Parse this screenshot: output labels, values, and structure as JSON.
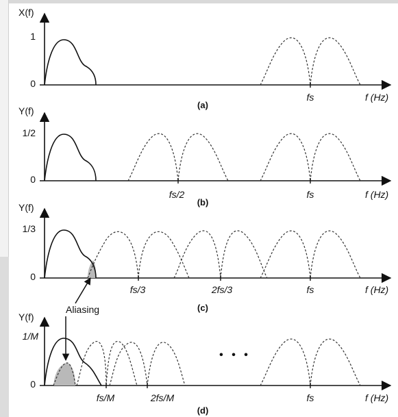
{
  "panels": [
    {
      "caption": "(a)",
      "y_axis_label": "X(f)",
      "y_tick_top": "1",
      "y_tick_zero": "0",
      "x_ticks": [
        "fs"
      ],
      "x_axis_label": "f (Hz)"
    },
    {
      "caption": "(b)",
      "y_axis_label": "Y(f)",
      "y_tick_top": "1/2",
      "y_tick_zero": "0",
      "x_ticks": [
        "fs/2",
        "fs"
      ],
      "x_axis_label": "f (Hz)"
    },
    {
      "caption": "(c)",
      "y_axis_label": "Y(f)",
      "y_tick_top": "1/3",
      "y_tick_zero": "0",
      "x_ticks": [
        "fs/3",
        "2fs/3",
        "fs"
      ],
      "x_axis_label": "f (Hz)"
    },
    {
      "caption": "(d)",
      "y_axis_label": "Y(f)",
      "y_tick_top": "1/M",
      "y_tick_zero": "0",
      "x_ticks": [
        "fs/M",
        "2fs/M",
        "fs"
      ],
      "x_axis_label": "f (Hz)",
      "ellipsis": "• • •"
    }
  ],
  "annotation": "Aliasing",
  "colors": {
    "line": "#111111",
    "aliasing_fill": "#b9b9b9"
  }
}
